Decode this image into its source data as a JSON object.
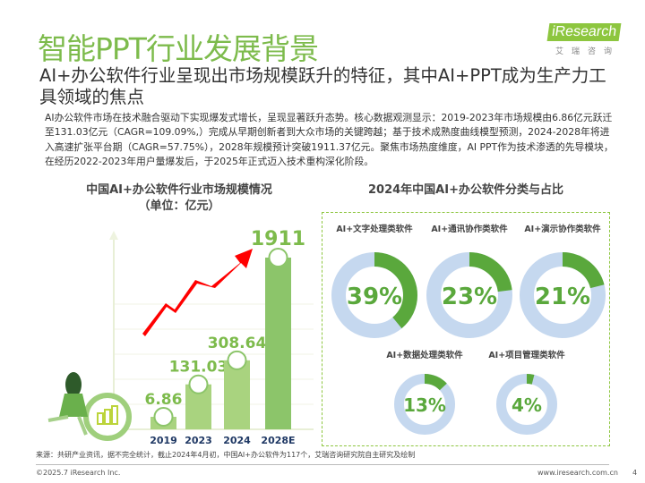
{
  "header": {
    "title": "智能PPT行业发展背景",
    "logo": {
      "brand": "iResearch",
      "sub": "艾瑞咨询"
    },
    "subtitle": "AI+办公软件行业呈现出市场规模跃升的特征，其中AI+PPT成为生产力工具领域的焦点",
    "body": "AI办公软件市场在技术融合驱动下实现爆发式增长，呈现显著跃升态势。核心数据观测显示：2019-2023年市场规模由6.86亿元跃迁至131.03亿元（CAGR=109.09%,）完成从早期创新者到大众市场的关键跨越；基于技术成熟度曲线模型预测，2024-2028年将进入高速扩张平台期（CAGR=57.75%），2028年规模预计突破1911.37亿元。聚焦市场热度维度，AI PPT作为技术渗透的先导模块，在经历2022-2023年用户量爆发后，于2025年正式迈入技术重构深化阶段。"
  },
  "chart_data": [
    {
      "type": "bar",
      "title": "中国AI+办公软件行业市场规模情况",
      "subtitle": "（单位：亿元）",
      "categories": [
        "2019",
        "2023",
        "2024",
        "2028E"
      ],
      "values": [
        6.86,
        131.03,
        308.64,
        1911
      ],
      "value_labels": [
        "6.86",
        "131.03",
        "308.64",
        "1911"
      ],
      "colors": {
        "bar": "#a9d37f",
        "bar_last": "#8cc56a",
        "label": "#7dbb4c",
        "arrow": "#ff0000",
        "axis_text": "#1f3864"
      },
      "grid": true
    },
    {
      "type": "pie",
      "title": "2024年中国AI+办公软件分类与占比",
      "slices": [
        {
          "label": "AI+文字处理类软件",
          "value": 39,
          "text": "39%"
        },
        {
          "label": "AI+通讯协作类软件",
          "value": 23,
          "text": "23%"
        },
        {
          "label": "AI+演示协作类软件",
          "value": 21,
          "text": "21%"
        },
        {
          "label": "AI+数据处理类软件",
          "value": 13,
          "text": "13%"
        },
        {
          "label": "AI+项目管理类软件",
          "value": 4,
          "text": "4%"
        }
      ],
      "colors": {
        "arc": "#5aa83c",
        "track": "#c5d8ef",
        "text": "#5aa83c"
      }
    }
  ],
  "footer": {
    "source": "来源：共研产业资讯，据不完全统计，截止2024年4月初，中国AI+办公软件为117个，艾瑞咨询研究院自主研究及绘制",
    "copyright": "©2025.7 iResearch Inc.",
    "site": "www.iresearch.com.cn",
    "page": "4"
  }
}
